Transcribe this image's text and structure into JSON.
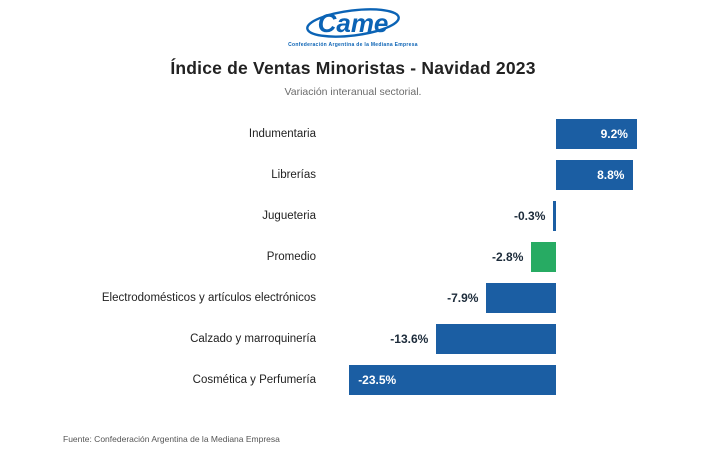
{
  "logo": {
    "brand": "Came",
    "tagline": "Confederación Argentina de la Mediana Empresa"
  },
  "header": {
    "title": "Índice de Ventas Minoristas - Navidad 2023",
    "subtitle": "Variación interanual sectorial."
  },
  "chart_data": {
    "type": "bar",
    "orientation": "horizontal",
    "title": "Índice de Ventas Minoristas - Navidad 2023",
    "subtitle": "Variación interanual sectorial.",
    "categories": [
      "Indumentaria",
      "Librerías",
      "Jugueteria",
      "Promedio",
      "Electrodomésticos y artículos electrónicos",
      "Calzado y marroquinería",
      "Cosmética y Perfumería"
    ],
    "values": [
      9.2,
      8.8,
      -0.3,
      -2.8,
      -7.9,
      -13.6,
      -23.5
    ],
    "value_labels": [
      "9.2%",
      "8.8%",
      "-0.3%",
      "-2.8%",
      "-7.9%",
      "-13.6%",
      "-23.5%"
    ],
    "unit": "%",
    "highlight_category": "Promedio",
    "xlim": [
      -24,
      10
    ],
    "grid": false,
    "legend": false
  },
  "colors": {
    "bar_blue": "#1b5ea3",
    "bar_green": "#27ab63",
    "negative_label": "#1c2b3a",
    "logo_blue": "#0b63b5"
  },
  "footer": {
    "source": "Fuente: Confederación Argentina de la Mediana Empresa"
  }
}
